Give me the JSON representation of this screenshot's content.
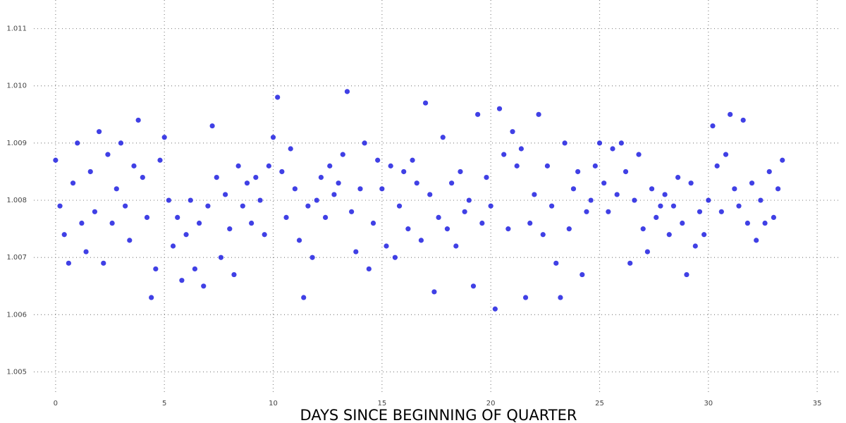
{
  "chart_data": {
    "type": "scatter",
    "xlabel": "DAYS SINCE BEGINNING OF QUARTER",
    "color": "#1e1ee0",
    "grid": true,
    "xlim": [
      -1,
      36
    ],
    "ylim": [
      1.0046,
      1.0115
    ],
    "xticks": [
      0,
      5,
      10,
      15,
      20,
      25,
      30,
      35
    ],
    "yticks": [
      1.005,
      1.006,
      1.007,
      1.008,
      1.009,
      {
        "value": 1.01,
        "label": "1.010"
      },
      1.011
    ],
    "x": [
      0,
      0.2,
      0.4,
      0.6,
      0.8,
      1,
      1.2,
      1.4,
      1.6,
      1.8,
      2,
      2.2,
      2.4,
      2.6,
      2.8,
      3,
      3.2,
      3.4,
      3.6,
      3.8,
      4,
      4.2,
      4.4,
      4.6,
      4.8,
      5,
      5.2,
      5.4,
      5.6,
      5.8,
      6,
      6.2,
      6.4,
      6.6,
      6.8,
      7,
      7.2,
      7.4,
      7.6,
      7.8,
      8,
      8.2,
      8.4,
      8.6,
      8.8,
      9,
      9.2,
      9.4,
      9.6,
      9.8,
      10,
      10.2,
      10.4,
      10.6,
      10.8,
      11,
      11.2,
      11.4,
      11.6,
      11.8,
      12,
      12.2,
      12.4,
      12.6,
      12.8,
      13,
      13.2,
      13.4,
      13.6,
      13.8,
      14,
      14.2,
      14.4,
      14.6,
      14.8,
      15,
      15.2,
      15.4,
      15.6,
      15.8,
      16,
      16.2,
      16.4,
      16.6,
      16.8,
      17,
      17.2,
      17.4,
      17.6,
      17.8,
      18,
      18.2,
      18.4,
      18.6,
      18.8,
      19,
      19.2,
      19.4,
      19.6,
      19.8,
      20,
      20.2,
      20.4,
      20.6,
      20.8,
      21,
      21.2,
      21.4,
      21.6,
      21.8,
      22,
      22.2,
      22.4,
      22.6,
      22.8,
      23,
      23.2,
      23.4,
      23.6,
      23.8,
      24,
      24.2,
      24.4,
      24.6,
      24.8,
      25,
      25.2,
      25.4,
      25.6,
      25.8,
      26,
      26.2,
      26.4,
      26.6,
      26.8,
      27,
      27.2,
      27.4,
      27.6,
      27.8,
      28,
      28.2,
      28.4,
      28.6,
      28.8,
      29,
      29.2,
      29.4,
      29.6,
      29.8,
      30,
      30.2,
      30.4,
      30.6,
      30.8,
      31,
      31.2,
      31.4,
      31.6,
      31.8,
      32,
      32.2,
      32.4,
      32.6,
      32.8,
      33,
      33.2,
      33.4
    ],
    "values": [
      1.0087,
      1.0079,
      1.0074,
      1.0069,
      1.0083,
      1.009,
      1.0076,
      1.0071,
      1.0085,
      1.0078,
      1.0092,
      1.0069,
      1.0088,
      1.0076,
      1.0082,
      1.009,
      1.0079,
      1.0073,
      1.0086,
      1.0094,
      1.0084,
      1.0077,
      1.0063,
      1.0068,
      1.0087,
      1.0091,
      1.008,
      1.0072,
      1.0077,
      1.0066,
      1.0074,
      1.008,
      1.0068,
      1.0076,
      1.0065,
      1.0079,
      1.0093,
      1.0084,
      1.007,
      1.0081,
      1.0075,
      1.0067,
      1.0086,
      1.0079,
      1.0083,
      1.0076,
      1.0084,
      1.008,
      1.0074,
      1.0086,
      1.0091,
      1.0098,
      1.0085,
      1.0077,
      1.0089,
      1.0082,
      1.0073,
      1.0063,
      1.0079,
      1.007,
      1.008,
      1.0084,
      1.0077,
      1.0086,
      1.0081,
      1.0083,
      1.0088,
      1.0099,
      1.0078,
      1.0071,
      1.0082,
      1.009,
      1.0068,
      1.0076,
      1.0087,
      1.0082,
      1.0072,
      1.0086,
      1.007,
      1.0079,
      1.0085,
      1.0075,
      1.0087,
      1.0083,
      1.0073,
      1.0097,
      1.0081,
      1.0064,
      1.0077,
      1.0091,
      1.0075,
      1.0083,
      1.0072,
      1.0085,
      1.0078,
      1.008,
      1.0065,
      1.0095,
      1.0076,
      1.0084,
      1.0079,
      1.0061,
      1.0096,
      1.0088,
      1.0075,
      1.0092,
      1.0086,
      1.0089,
      1.0063,
      1.0076,
      1.0081,
      1.0095,
      1.0074,
      1.0086,
      1.0079,
      1.0069,
      1.0063,
      1.009,
      1.0075,
      1.0082,
      1.0085,
      1.0067,
      1.0078,
      1.008,
      1.0086,
      1.009,
      1.0083,
      1.0078,
      1.0089,
      1.0081,
      1.009,
      1.0085,
      1.0069,
      1.008,
      1.0088,
      1.0075,
      1.0071,
      1.0082,
      1.0077,
      1.0079,
      1.0081,
      1.0074,
      1.0079,
      1.0084,
      1.0076,
      1.0067,
      1.0083,
      1.0072,
      1.0078,
      1.0074,
      1.008,
      1.0093,
      1.0086,
      1.0078,
      1.0088,
      1.0095,
      1.0082,
      1.0079,
      1.0094,
      1.0076,
      1.0083,
      1.0073,
      1.008,
      1.0076,
      1.0085,
      1.0077,
      1.0082,
      1.0087
    ]
  }
}
